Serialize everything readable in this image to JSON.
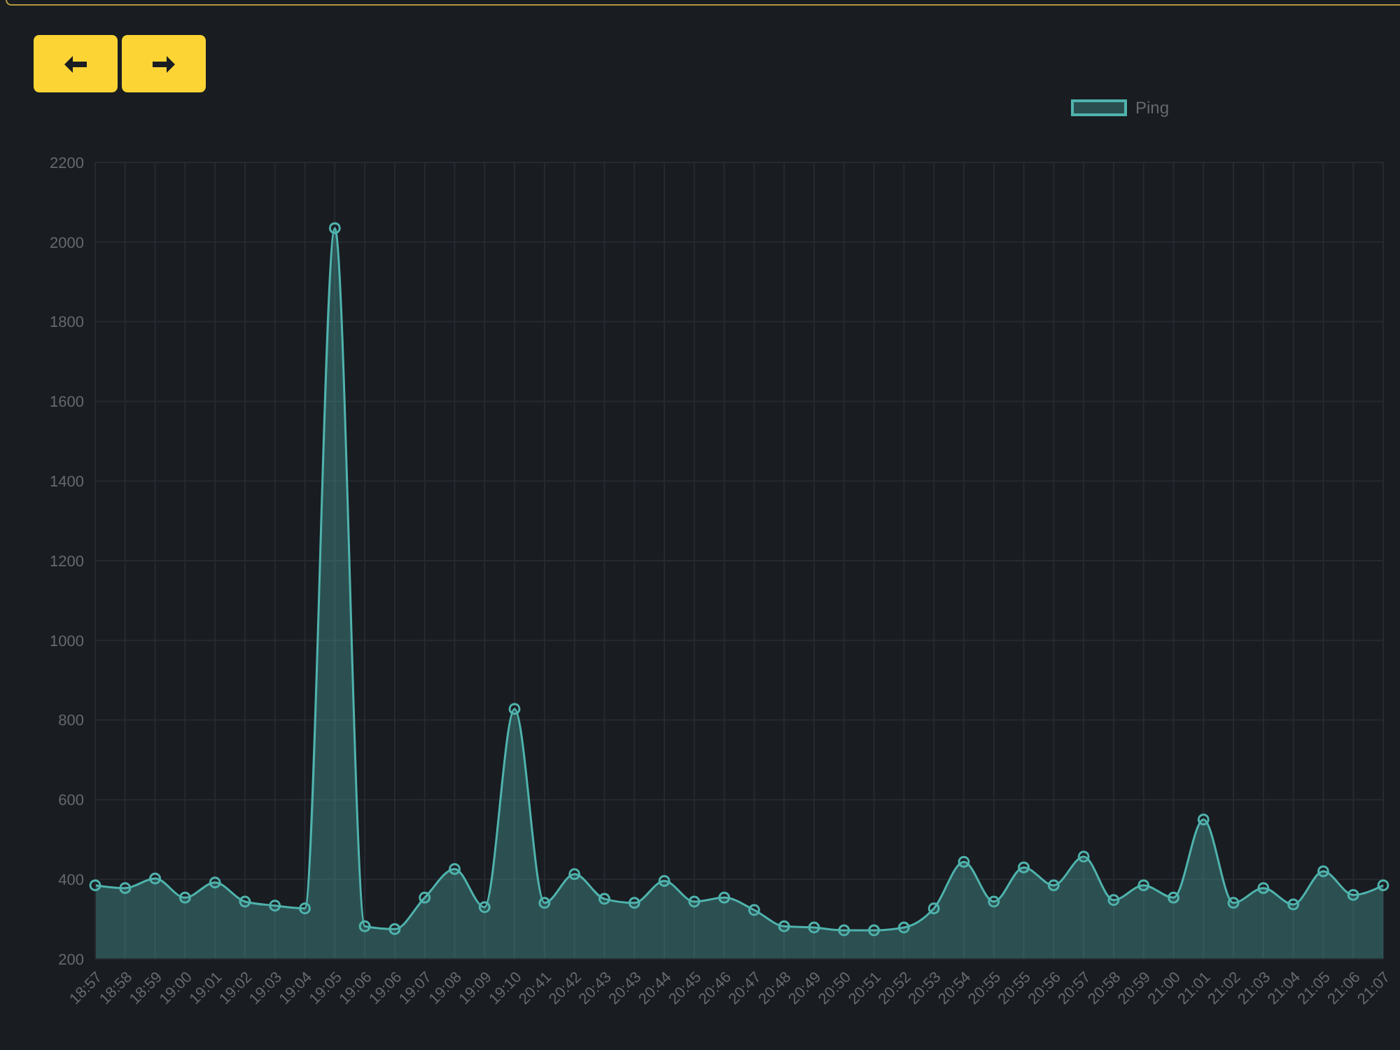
{
  "chart_data": {
    "type": "area",
    "categories": [
      "18:57",
      "18:58",
      "18:59",
      "19:00",
      "19:01",
      "19:02",
      "19:03",
      "19:04",
      "19:05",
      "19:06",
      "19:06",
      "19:07",
      "19:08",
      "19:09",
      "19:10",
      "20:41",
      "20:42",
      "20:43",
      "20:43",
      "20:44",
      "20:45",
      "20:46",
      "20:47",
      "20:48",
      "20:49",
      "20:50",
      "20:51",
      "20:52",
      "20:53",
      "20:54",
      "20:55",
      "20:55",
      "20:56",
      "20:57",
      "20:58",
      "20:59",
      "21:00",
      "21:01",
      "21:02",
      "21:03",
      "21:04",
      "21:05",
      "21:06",
      "21:07"
    ],
    "series": [
      {
        "name": "Ping",
        "color": "#4fb3ad",
        "values": [
          385,
          378,
          402,
          354,
          392,
          344,
          334,
          327,
          2035,
          282,
          275,
          354,
          426,
          330,
          828,
          341,
          413,
          351,
          341,
          396,
          344,
          354,
          323,
          282,
          279,
          272,
          272,
          279,
          327,
          444,
          344,
          430,
          385,
          457,
          348,
          385,
          354,
          550,
          341,
          378,
          337,
          420,
          361,
          385
        ]
      }
    ],
    "ylim": [
      200,
      2200
    ],
    "yticks": [
      200,
      400,
      600,
      800,
      1000,
      1200,
      1400,
      1600,
      1800,
      2000,
      2200
    ],
    "grid": true,
    "legend": "top",
    "marker": "circle"
  }
}
